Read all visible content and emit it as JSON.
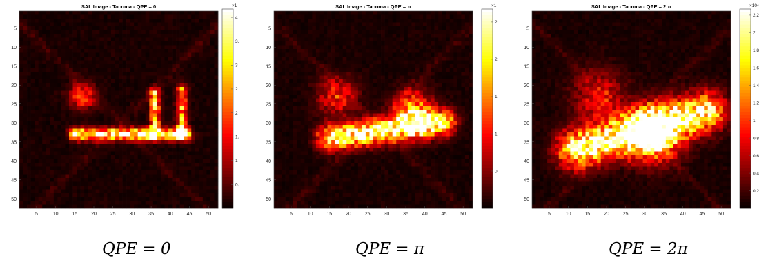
{
  "chart_data": [
    {
      "type": "heatmap",
      "title": "SAL Image - Tacoma - QPE = 0",
      "caption": "QPE = 0",
      "colormap": "hot",
      "grid_size": 52,
      "xticks": [
        "5",
        "10",
        "15",
        "20",
        "25",
        "30",
        "35",
        "40",
        "45",
        "50"
      ],
      "yticks": [
        "5",
        "10",
        "15",
        "20",
        "25",
        "30",
        "35",
        "40",
        "45",
        "50"
      ],
      "colorbar": {
        "multiplier": "×1",
        "ticks": [
          "0.",
          "1",
          "1.",
          "2",
          "2.",
          "3",
          "3.",
          "4"
        ]
      },
      "shape": "bracket",
      "features": [
        {
          "kind": "bar",
          "from": [
            15,
            33
          ],
          "to": [
            44,
            33
          ],
          "intensity": 0.85
        },
        {
          "kind": "vertical",
          "from": [
            36,
            22
          ],
          "to": [
            36,
            33
          ],
          "intensity": 0.7
        },
        {
          "kind": "vertical",
          "from": [
            43,
            21
          ],
          "to": [
            43,
            33
          ],
          "intensity": 0.65
        },
        {
          "kind": "blob",
          "center": [
            17,
            23
          ],
          "intensity": 0.45
        }
      ]
    },
    {
      "type": "heatmap",
      "title": "SAL Image - Tacoma - QPE =  π",
      "caption": "QPE = π",
      "colormap": "hot",
      "grid_size": 52,
      "xticks": [
        "5",
        "10",
        "15",
        "20",
        "25",
        "30",
        "35",
        "40",
        "45",
        "50"
      ],
      "yticks": [
        "5",
        "10",
        "15",
        "20",
        "25",
        "30",
        "35",
        "40",
        "45",
        "50"
      ],
      "colorbar": {
        "multiplier": "×1",
        "ticks": [
          "0.",
          "1",
          "1.",
          "2",
          "2."
        ]
      },
      "shape": "curved",
      "features": [
        {
          "kind": "band",
          "from": [
            15,
            34
          ],
          "to": [
            45,
            30
          ],
          "intensity": 0.9
        },
        {
          "kind": "blob",
          "center": [
            37,
            27
          ],
          "intensity": 0.75
        },
        {
          "kind": "blob",
          "center": [
            17,
            23
          ],
          "intensity": 0.4
        }
      ]
    },
    {
      "type": "heatmap",
      "title": "SAL Image - Tacoma - QPE = 2 π",
      "caption": "QPE = 2π",
      "colormap": "hot",
      "grid_size": 52,
      "xticks": [
        "5",
        "10",
        "15",
        "20",
        "25",
        "30",
        "35",
        "40",
        "45",
        "50"
      ],
      "yticks": [
        "5",
        "10",
        "15",
        "20",
        "25",
        "30",
        "35",
        "40",
        "45",
        "50"
      ],
      "colorbar": {
        "multiplier": "×10⁴",
        "ticks": [
          "0.2",
          "0.4",
          "0.6",
          "0.8",
          "1",
          "1.2",
          "1.4",
          "1.6",
          "1.8",
          "2",
          "2.2"
        ]
      },
      "shape": "diagonal",
      "features": [
        {
          "kind": "band",
          "from": [
            12,
            37
          ],
          "to": [
            46,
            27
          ],
          "intensity": 0.95
        },
        {
          "kind": "blob",
          "center": [
            32,
            33
          ],
          "intensity": 1.0
        },
        {
          "kind": "blob",
          "center": [
            18,
            23
          ],
          "intensity": 0.35
        }
      ]
    }
  ]
}
